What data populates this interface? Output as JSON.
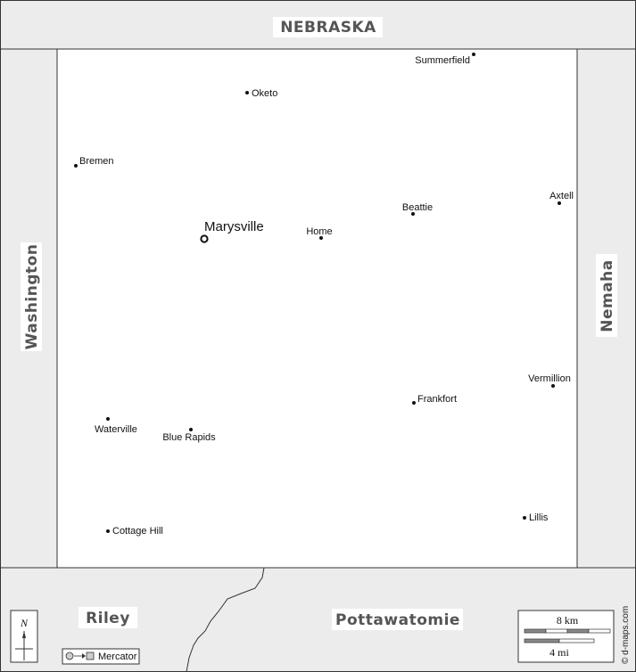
{
  "colors": {
    "outside": "#ececec",
    "county": "#ffffff",
    "border": "#333333",
    "label_bg": "#ffffff"
  },
  "neighbors": {
    "north": "NEBRASKA",
    "west": "Washington",
    "east": "Nemaha",
    "south_west": "Riley",
    "south_east": "Pottawatomie"
  },
  "county_seat": {
    "name": "Marysville",
    "icon": "county-seat-ring-icon"
  },
  "towns": [
    {
      "name": "Summerfield",
      "key": "summerfield"
    },
    {
      "name": "Oketo",
      "key": "oketo"
    },
    {
      "name": "Bremen",
      "key": "bremen"
    },
    {
      "name": "Axtell",
      "key": "axtell"
    },
    {
      "name": "Beattie",
      "key": "beattie"
    },
    {
      "name": "Home",
      "key": "home"
    },
    {
      "name": "Vermillion",
      "key": "vermillion"
    },
    {
      "name": "Frankfort",
      "key": "frankfort"
    },
    {
      "name": "Waterville",
      "key": "waterville"
    },
    {
      "name": "Blue Rapids",
      "key": "blue-rapids"
    },
    {
      "name": "Lillis",
      "key": "lillis"
    },
    {
      "name": "Cottage Hill",
      "key": "cottage-hill"
    }
  ],
  "compass": {
    "label": "N",
    "icon": "north-arrow-icon"
  },
  "projection": {
    "label": "Mercator",
    "icon": "projection-icon"
  },
  "scale": {
    "km": "8 km",
    "mi": "4 mi"
  },
  "credit": "© d-maps.com"
}
